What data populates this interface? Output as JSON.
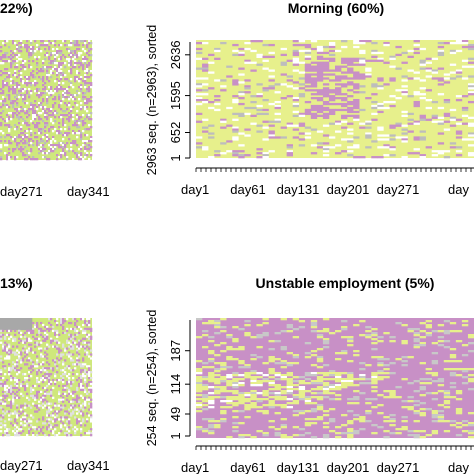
{
  "chart_data": [
    {
      "type": "heatmap",
      "title": "22%)",
      "x_ticks": [
        "day271",
        "day341"
      ],
      "colors": {
        "main": "#cfe87c",
        "accent": "#c890c6",
        "grey": "#bdbdbd"
      }
    },
    {
      "type": "heatmap",
      "title": "Morning (60%)",
      "ylabel": "2963 seq. (n=2963), sorted",
      "y_ticks": [
        "1",
        "652",
        "1595",
        "2636"
      ],
      "y_tick_values": [
        1,
        652,
        1595,
        2636
      ],
      "ylim": [
        1,
        2963
      ],
      "x_ticks": [
        "day1",
        "day61",
        "day131",
        "day201",
        "day271",
        "day"
      ],
      "colors": {
        "main": "#e7f08c",
        "accent": "#c890c6",
        "grey": "#bdbdbd"
      }
    },
    {
      "type": "heatmap",
      "title": "13%)",
      "x_ticks": [
        "day271",
        "day341"
      ],
      "colors": {
        "main": "#cfe87c",
        "accent": "#c890c6",
        "grey": "#a8a8a8"
      }
    },
    {
      "type": "heatmap",
      "title": "Unstable employment (5%)",
      "ylabel": "254 seq. (n=254), sorted",
      "y_ticks": [
        "1",
        "49",
        "114",
        "187"
      ],
      "y_tick_values": [
        1,
        49,
        114,
        187
      ],
      "ylim": [
        1,
        254
      ],
      "x_ticks": [
        "day1",
        "day61",
        "day131",
        "day201",
        "day271",
        "day"
      ],
      "colors": {
        "main": "#c890c6",
        "accent": "#e7f08c",
        "grey": "#c8c8c8"
      }
    }
  ]
}
